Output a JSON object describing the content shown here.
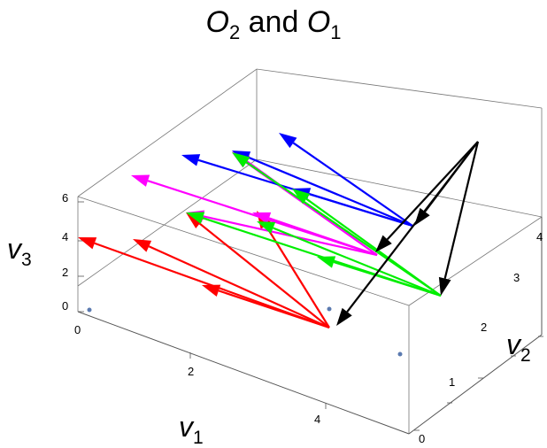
{
  "title": "O₂ and O₁",
  "chart_data": {
    "type": "3d-vector-plot",
    "title": "O₂ and O₁",
    "xlabel": "v₁",
    "ylabel": "v₂",
    "zlabel": "v₃",
    "xticks": [
      "0",
      "2",
      "4"
    ],
    "yticks": [
      "0",
      "1",
      "2",
      "3",
      "4"
    ],
    "zticks": [
      "0",
      "2",
      "4",
      "6"
    ],
    "points": [
      {
        "color": "#5b7ab0",
        "screen_hint": "near v1=0,v3=0"
      },
      {
        "color": "#5b7ab0",
        "screen_hint": "near v1=4 front"
      },
      {
        "color": "#5b7ab0",
        "screen_hint": "right face low"
      }
    ],
    "series": [
      {
        "color": "#ff0000",
        "count": 5
      },
      {
        "color": "#ff00ff",
        "count": 5
      },
      {
        "color": "#0000ff",
        "count": 4
      },
      {
        "color": "#00ee00",
        "count": 5
      },
      {
        "color": "#000000",
        "count": 4
      }
    ],
    "grid": false
  }
}
